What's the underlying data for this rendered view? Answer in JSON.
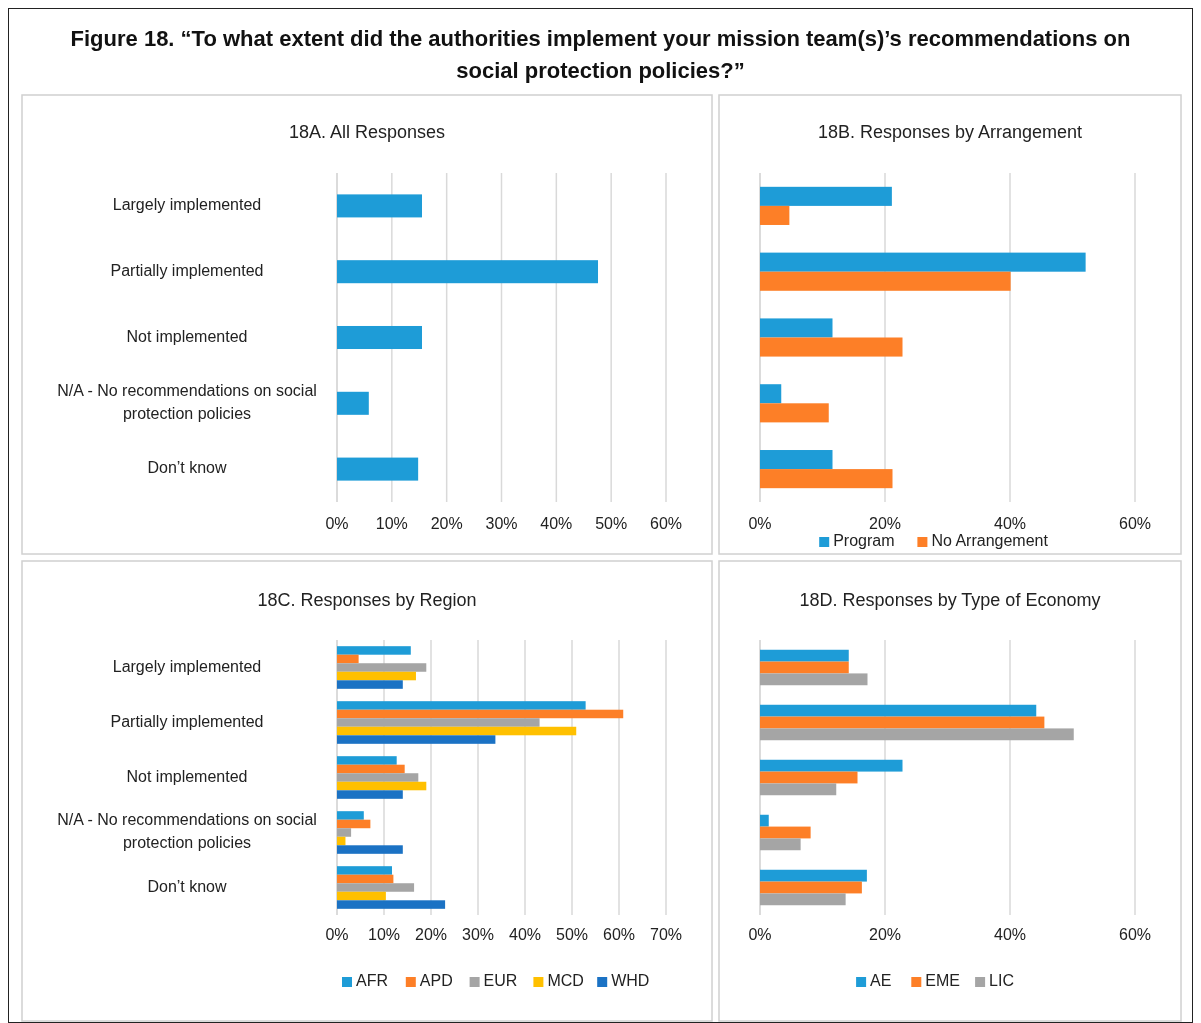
{
  "chart_data": [
    {
      "type": "bar",
      "orientation": "horizontal",
      "title": "Figure 18. “To what extent did the authorities implement your mission team(s)’s recommendations on social protection policies?”",
      "subtitle": "18A. All Responses",
      "categories": [
        "Largely implemented",
        "Partially implemented",
        "Not implemented",
        "N/A - No recommendations on social protection policies",
        "Don’t know"
      ],
      "values": [
        15.5,
        47.6,
        15.5,
        5.8,
        14.8
      ],
      "color": "#1e9cd7",
      "xlim": [
        0,
        60
      ],
      "xticks": [
        {
          "value": 0,
          "label": "0%"
        },
        {
          "value": 10,
          "label": "10%"
        },
        {
          "value": 20,
          "label": "20%"
        },
        {
          "value": 30,
          "label": "30%"
        },
        {
          "value": 40,
          "label": "40%"
        },
        {
          "value": 50,
          "label": "50%"
        },
        {
          "value": 60,
          "label": "60%"
        }
      ],
      "grid": "x",
      "legend": false
    },
    {
      "type": "bar",
      "orientation": "horizontal",
      "subtitle": "18B. Responses by Arrangement",
      "categories": [
        null,
        null,
        null,
        null,
        null
      ],
      "series": [
        {
          "name": "Program",
          "color": "#1e9cd7",
          "values": [
            21.1,
            52.1,
            11.6,
            3.4,
            11.6
          ]
        },
        {
          "name": "No Arrangement",
          "color": "#fd7f27",
          "values": [
            4.7,
            40.1,
            22.8,
            11.0,
            21.2
          ]
        }
      ],
      "xlim": [
        0,
        60
      ],
      "xticks": [
        {
          "value": 0,
          "label": "0%"
        },
        {
          "value": 20,
          "label": "20%"
        },
        {
          "value": 40,
          "label": "40%"
        },
        {
          "value": 60,
          "label": "60%"
        }
      ],
      "grid": "x",
      "legend": "bottom",
      "tick_labels": "x"
    },
    {
      "type": "bar",
      "orientation": "horizontal",
      "subtitle": "18C. Responses by Region",
      "categories": [
        "Largely implemented",
        "Partially implemented",
        "Not implemented",
        "N/A - No recommendations on social protection policies",
        "Don’t know"
      ],
      "series": [
        {
          "name": "AFR",
          "color": "#1e9cd7",
          "values": [
            15.7,
            52.9,
            12.7,
            5.7,
            11.7
          ]
        },
        {
          "name": "APD",
          "color": "#fd7f27",
          "values": [
            4.6,
            60.9,
            14.4,
            7.1,
            12.0
          ]
        },
        {
          "name": "EUR",
          "color": "#a5a5a5",
          "values": [
            19.0,
            43.1,
            17.3,
            3.0,
            16.4
          ]
        },
        {
          "name": "MCD",
          "color": "#ffc000",
          "values": [
            16.8,
            50.9,
            19.0,
            1.8,
            10.4
          ]
        },
        {
          "name": "WHD",
          "color": "#1b72c4",
          "values": [
            14.0,
            33.7,
            14.0,
            14.0,
            23.0
          ]
        }
      ],
      "xlim": [
        0,
        70
      ],
      "xticks": [
        {
          "value": 0,
          "label": "0%"
        },
        {
          "value": 10,
          "label": "10%"
        },
        {
          "value": 20,
          "label": "20%"
        },
        {
          "value": 30,
          "label": "30%"
        },
        {
          "value": 40,
          "label": "40%"
        },
        {
          "value": 50,
          "label": "50%"
        },
        {
          "value": 60,
          "label": "60%"
        },
        {
          "value": 70,
          "label": "70%"
        }
      ],
      "grid": "x",
      "legend": "bottom"
    },
    {
      "type": "bar",
      "orientation": "horizontal",
      "subtitle": "18D. Responses by Type of Economy",
      "categories": [
        null,
        null,
        null,
        null,
        null
      ],
      "series": [
        {
          "name": "AE",
          "color": "#1e9cd7",
          "values": [
            14.2,
            44.2,
            22.8,
            1.4,
            17.1
          ]
        },
        {
          "name": "EME",
          "color": "#fd7f27",
          "values": [
            14.2,
            45.5,
            15.6,
            8.1,
            16.3
          ]
        },
        {
          "name": "LIC",
          "color": "#a5a5a5",
          "values": [
            17.2,
            50.2,
            12.2,
            6.5,
            13.7
          ]
        }
      ],
      "xlim": [
        0,
        60
      ],
      "xticks": [
        {
          "value": 0,
          "label": "0%"
        },
        {
          "value": 20,
          "label": "20%"
        },
        {
          "value": 40,
          "label": "40%"
        },
        {
          "value": 60,
          "label": "60%"
        }
      ],
      "grid": "x",
      "legend": "bottom",
      "tick_labels": "x"
    }
  ]
}
